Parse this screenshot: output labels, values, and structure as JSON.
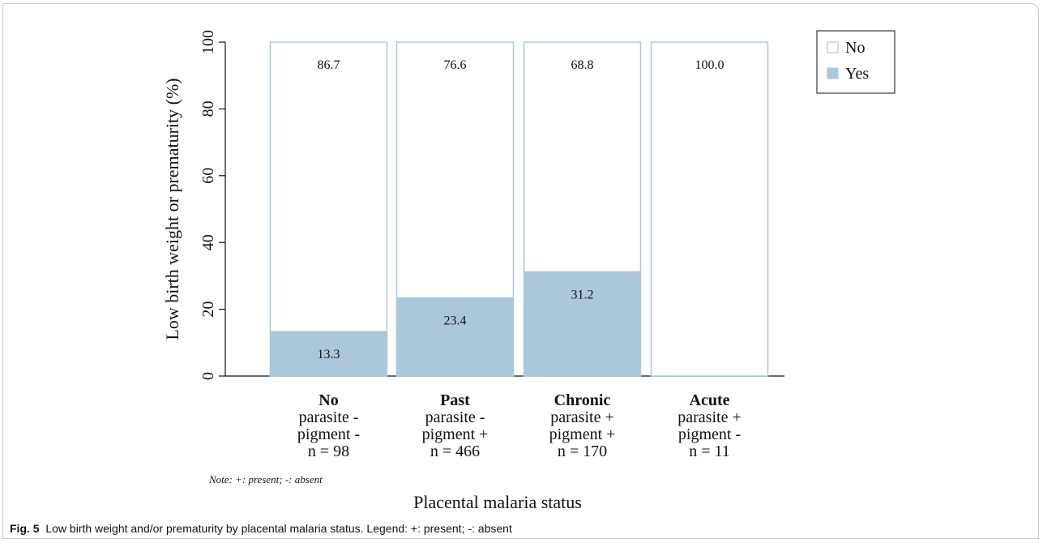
{
  "chart_data": {
    "type": "bar",
    "stacked": true,
    "percent": true,
    "categories": [
      {
        "title": "No",
        "lines": [
          "parasite -",
          "pigment -",
          "n = 98"
        ]
      },
      {
        "title": "Past",
        "lines": [
          "parasite -",
          "pigment +",
          "n = 466"
        ]
      },
      {
        "title": "Chronic",
        "lines": [
          "parasite +",
          "pigment +",
          "n = 170"
        ]
      },
      {
        "title": "Acute",
        "lines": [
          "parasite +",
          "pigment -",
          "n = 11"
        ]
      }
    ],
    "series": [
      {
        "name": "Yes",
        "color": "#adc7da",
        "values": [
          13.3,
          23.4,
          31.2,
          0.0
        ],
        "labels": [
          "13.3",
          "23.4",
          "31.2",
          ""
        ]
      },
      {
        "name": "No",
        "color": "#ffffff",
        "values": [
          86.7,
          76.6,
          68.8,
          100.0
        ],
        "labels": [
          "86.7",
          "76.6",
          "68.8",
          "100.0"
        ]
      }
    ],
    "bar_outline_color": "#adc7da",
    "ylabel": "Low birth weight or prematurity (%)",
    "xlabel": "Placental malaria status",
    "ylim": [
      0,
      100
    ],
    "yticks": [
      "0",
      "20",
      "40",
      "60",
      "80",
      "100"
    ],
    "legend": {
      "position": "top-right",
      "items": [
        "No",
        "Yes"
      ]
    },
    "note": "Note: +: present; -: absent",
    "grid": false
  },
  "caption": {
    "label": "Fig. 5",
    "text": "Low birth weight and/or prematurity by placental malaria status. Legend: +: present; -: absent"
  }
}
